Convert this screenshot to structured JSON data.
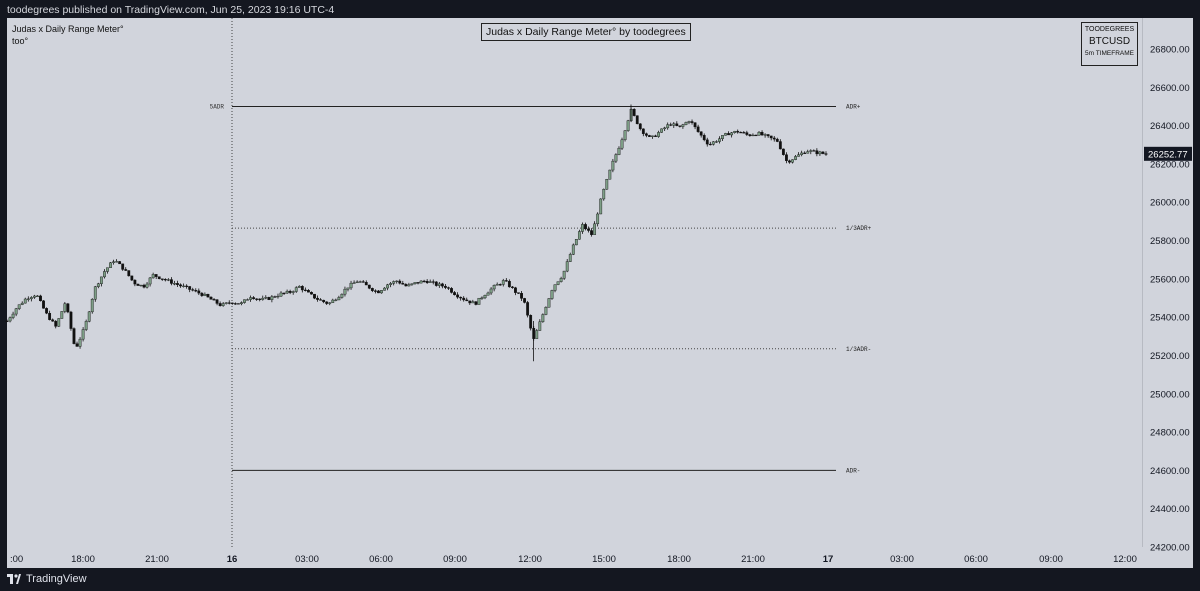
{
  "header": {
    "published_text": "toodegrees published on TradingView.com, Jun 25, 2023 19:16 UTC-4"
  },
  "indicator": {
    "name": "Judas x Daily Range Meter°",
    "sub_label": "too°",
    "title_box": "Judas x Daily Range Meter° by toodegrees"
  },
  "info_box": {
    "author": "TOODEGREES",
    "symbol": "BTCUSD",
    "timeframe": "5m TIMEFRAME"
  },
  "footer": {
    "brand": "TradingView"
  },
  "colors": {
    "bull": "#7d9e86",
    "bear": "#111111",
    "background": "#d1d4dc",
    "price_tag": "#131722"
  },
  "chart_data": {
    "type": "candlestick",
    "y_axis": {
      "range": [
        24200,
        26950
      ],
      "ticks": [
        "26800.00",
        "26600.00",
        "26400.00",
        "26200.00",
        "26000.00",
        "25800.00",
        "25600.00",
        "25400.00",
        "25200.00",
        "25000.00",
        "24800.00",
        "24600.00",
        "24400.00",
        "24200.00"
      ]
    },
    "x_axis": {
      "ticks": [
        {
          "label": ":00",
          "bold": false
        },
        {
          "label": "18:00",
          "bold": false
        },
        {
          "label": "21:00",
          "bold": false
        },
        {
          "label": "16",
          "bold": true
        },
        {
          "label": "03:00",
          "bold": false
        },
        {
          "label": "06:00",
          "bold": false
        },
        {
          "label": "09:00",
          "bold": false
        },
        {
          "label": "12:00",
          "bold": false
        },
        {
          "label": "15:00",
          "bold": false
        },
        {
          "label": "18:00",
          "bold": false
        },
        {
          "label": "21:00",
          "bold": false
        },
        {
          "label": "17",
          "bold": true
        },
        {
          "label": "03:00",
          "bold": false
        },
        {
          "label": "06:00",
          "bold": false
        },
        {
          "label": "09:00",
          "bold": false
        },
        {
          "label": "12:00",
          "bold": false
        }
      ]
    },
    "levels": [
      {
        "label": "ADR+",
        "value": 26500,
        "style": "solid"
      },
      {
        "label": "1/3ADR+",
        "value": 25865,
        "style": "dotted"
      },
      {
        "label": "1/3ADR-",
        "value": 25235,
        "style": "dotted"
      },
      {
        "label": "ADR-",
        "value": 24600,
        "style": "solid"
      }
    ],
    "day_open_label": "5ADR",
    "last_price": "26252.77",
    "price_path": [
      [
        0,
        25380
      ],
      [
        1,
        25450
      ],
      [
        2,
        25500
      ],
      [
        3,
        25520
      ],
      [
        4,
        25420
      ],
      [
        5,
        25350
      ],
      [
        6,
        25480
      ],
      [
        7,
        25230
      ],
      [
        8,
        25350
      ],
      [
        9,
        25550
      ],
      [
        10,
        25640
      ],
      [
        11,
        25700
      ],
      [
        12,
        25650
      ],
      [
        13,
        25580
      ],
      [
        14,
        25560
      ],
      [
        15,
        25620
      ],
      [
        16,
        25600
      ],
      [
        17,
        25580
      ],
      [
        18,
        25560
      ],
      [
        19,
        25540
      ],
      [
        20,
        25520
      ],
      [
        21,
        25490
      ],
      [
        22,
        25460
      ],
      [
        23,
        25480
      ],
      [
        24,
        25470
      ],
      [
        25,
        25510
      ],
      [
        26,
        25490
      ],
      [
        27,
        25500
      ],
      [
        28,
        25520
      ],
      [
        29,
        25530
      ],
      [
        30,
        25560
      ],
      [
        31,
        25520
      ],
      [
        32,
        25490
      ],
      [
        33,
        25470
      ],
      [
        34,
        25510
      ],
      [
        35,
        25560
      ],
      [
        36,
        25590
      ],
      [
        37,
        25560
      ],
      [
        38,
        25530
      ],
      [
        39,
        25570
      ],
      [
        40,
        25590
      ],
      [
        41,
        25560
      ],
      [
        42,
        25580
      ],
      [
        43,
        25590
      ],
      [
        44,
        25570
      ],
      [
        45,
        25560
      ],
      [
        46,
        25520
      ],
      [
        47,
        25490
      ],
      [
        48,
        25470
      ],
      [
        49,
        25520
      ],
      [
        50,
        25560
      ],
      [
        51,
        25590
      ],
      [
        52,
        25540
      ],
      [
        53,
        25490
      ],
      [
        54,
        25280
      ],
      [
        55,
        25420
      ],
      [
        56,
        25560
      ],
      [
        57,
        25620
      ],
      [
        58,
        25760
      ],
      [
        59,
        25880
      ],
      [
        60,
        25830
      ],
      [
        61,
        26030
      ],
      [
        62,
        26190
      ],
      [
        63,
        26320
      ],
      [
        64,
        26480
      ],
      [
        65,
        26380
      ],
      [
        66,
        26330
      ],
      [
        67,
        26370
      ],
      [
        68,
        26410
      ],
      [
        69,
        26390
      ],
      [
        70,
        26430
      ],
      [
        71,
        26360
      ],
      [
        72,
        26300
      ],
      [
        73,
        26330
      ],
      [
        74,
        26360
      ],
      [
        75,
        26370
      ],
      [
        76,
        26350
      ],
      [
        77,
        26360
      ],
      [
        78,
        26340
      ],
      [
        79,
        26320
      ],
      [
        80,
        26210
      ],
      [
        81,
        26240
      ],
      [
        82,
        26270
      ],
      [
        83,
        26260
      ],
      [
        84,
        26252
      ]
    ]
  }
}
